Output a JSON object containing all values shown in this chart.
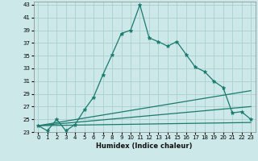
{
  "xlabel": "Humidex (Indice chaleur)",
  "ylabel": "",
  "background_color": "#cce8e8",
  "grid_color": "#aacfcf",
  "line_color": "#1a7a6e",
  "xlim": [
    -0.5,
    23.5
  ],
  "ylim": [
    23,
    43.5
  ],
  "xticks": [
    0,
    1,
    2,
    3,
    4,
    5,
    6,
    7,
    8,
    9,
    10,
    11,
    12,
    13,
    14,
    15,
    16,
    17,
    18,
    19,
    20,
    21,
    22,
    23
  ],
  "yticks": [
    23,
    25,
    27,
    29,
    31,
    33,
    35,
    37,
    39,
    41,
    43
  ],
  "main_series": [
    [
      0,
      24.0
    ],
    [
      1,
      23.2
    ],
    [
      2,
      25.0
    ],
    [
      3,
      23.2
    ],
    [
      4,
      24.2
    ],
    [
      5,
      26.5
    ],
    [
      6,
      28.5
    ],
    [
      7,
      32.0
    ],
    [
      8,
      35.2
    ],
    [
      9,
      38.5
    ],
    [
      10,
      39.0
    ],
    [
      11,
      43.0
    ],
    [
      12,
      37.8
    ],
    [
      13,
      37.2
    ],
    [
      14,
      36.5
    ],
    [
      15,
      37.2
    ],
    [
      16,
      35.2
    ],
    [
      17,
      33.2
    ],
    [
      18,
      32.5
    ],
    [
      19,
      31.0
    ],
    [
      20,
      30.0
    ],
    [
      21,
      26.0
    ],
    [
      22,
      26.2
    ],
    [
      23,
      25.0
    ]
  ],
  "linear_series1": [
    [
      0,
      24.0
    ],
    [
      23,
      24.5
    ]
  ],
  "linear_series2": [
    [
      0,
      24.0
    ],
    [
      23,
      27.0
    ]
  ],
  "linear_series3": [
    [
      0,
      24.0
    ],
    [
      23,
      29.5
    ]
  ],
  "marker": "*",
  "marker_size": 3.5,
  "line_width": 0.9,
  "tick_fontsize": 5.0,
  "xlabel_fontsize": 6.0
}
